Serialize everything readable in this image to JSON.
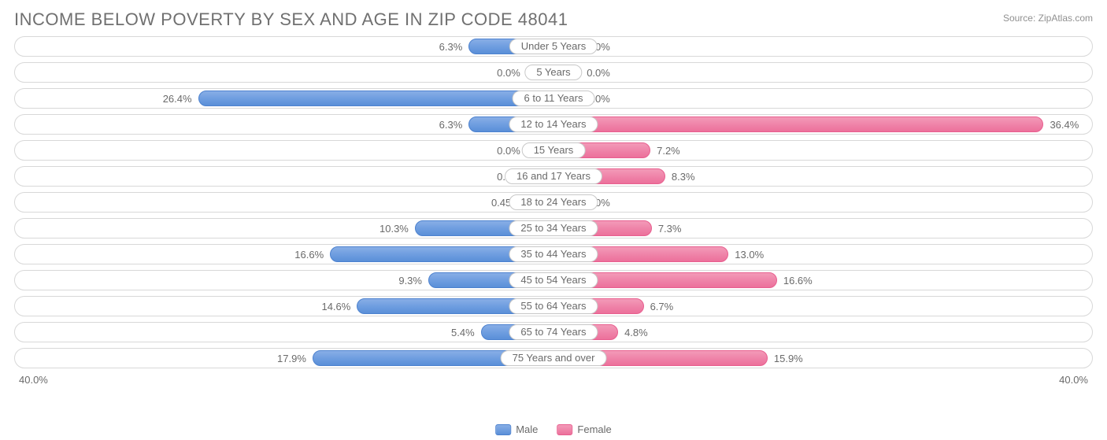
{
  "title": "INCOME BELOW POVERTY BY SEX AND AGE IN ZIP CODE 48041",
  "source": "Source: ZipAtlas.com",
  "axis_max": 40.0,
  "axis_label_left": "40.0%",
  "axis_label_right": "40.0%",
  "min_bar_pct": 5.0,
  "colors": {
    "male_fill_top": "#88aee6",
    "male_fill_bot": "#5a8fd8",
    "male_border": "#4d82cf",
    "female_fill_top": "#f39ab8",
    "female_fill_bot": "#ec709b",
    "female_border": "#e85f8f",
    "track_border": "#d8d8d8",
    "text": "#6a6a6a",
    "title_text": "#707070",
    "background": "#ffffff"
  },
  "legend": {
    "male": "Male",
    "female": "Female"
  },
  "rows": [
    {
      "category": "Under 5 Years",
      "male": 6.3,
      "female": 0.0
    },
    {
      "category": "5 Years",
      "male": 0.0,
      "female": 0.0
    },
    {
      "category": "6 to 11 Years",
      "male": 26.4,
      "female": 0.0
    },
    {
      "category": "12 to 14 Years",
      "male": 6.3,
      "female": 36.4
    },
    {
      "category": "15 Years",
      "male": 0.0,
      "female": 7.2
    },
    {
      "category": "16 and 17 Years",
      "male": 0.0,
      "female": 8.3
    },
    {
      "category": "18 to 24 Years",
      "male": 0.45,
      "female": 0.0
    },
    {
      "category": "25 to 34 Years",
      "male": 10.3,
      "female": 7.3
    },
    {
      "category": "35 to 44 Years",
      "male": 16.6,
      "female": 13.0
    },
    {
      "category": "45 to 54 Years",
      "male": 9.3,
      "female": 16.6
    },
    {
      "category": "55 to 64 Years",
      "male": 14.6,
      "female": 6.7
    },
    {
      "category": "65 to 74 Years",
      "male": 5.4,
      "female": 4.8
    },
    {
      "category": "75 Years and over",
      "male": 17.9,
      "female": 15.9
    }
  ]
}
